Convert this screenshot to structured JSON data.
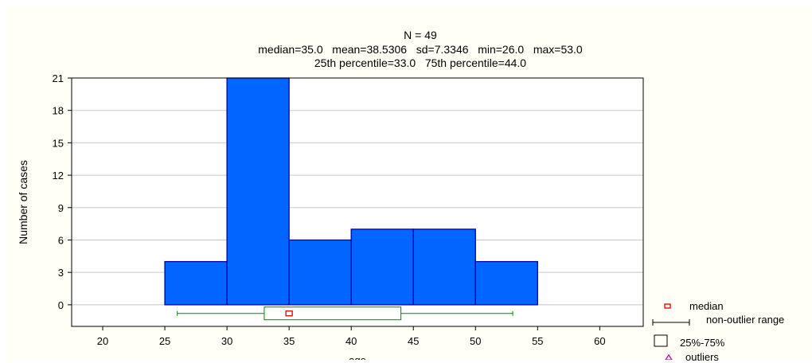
{
  "chart_data": {
    "type": "bar",
    "title": "N = 49",
    "subtitle_lines": [
      "median=35.0   mean=38.5306   sd=7.3346   min=26.0   max=53.0",
      "25th percentile=33.0   75th percentile=44.0"
    ],
    "xlabel": "age",
    "ylabel": "Number of cases",
    "xlim": [
      17.5,
      63.5
    ],
    "ylim": [
      -2,
      21
    ],
    "xticks": [
      20,
      25,
      30,
      35,
      40,
      45,
      50,
      55,
      60
    ],
    "yticks": [
      0,
      3,
      6,
      9,
      12,
      15,
      18,
      21
    ],
    "bins": [
      {
        "from": 25,
        "to": 30,
        "count": 4
      },
      {
        "from": 30,
        "to": 35,
        "count": 21
      },
      {
        "from": 35,
        "to": 40,
        "count": 6
      },
      {
        "from": 40,
        "to": 45,
        "count": 7
      },
      {
        "from": 45,
        "to": 50,
        "count": 7
      },
      {
        "from": 50,
        "to": 55,
        "count": 4
      }
    ],
    "boxplot": {
      "median": 35.0,
      "q1": 33.0,
      "q3": 44.0,
      "min": 26.0,
      "max": 53.0,
      "y_level": -0.8
    },
    "grid": true,
    "colors": {
      "bar_fill": "#0066ff",
      "bar_stroke": "#0000aa",
      "box": "#008800",
      "median": "#dd0000",
      "outlier": "#cc00cc",
      "plot_bg": "#ffffff",
      "page_bg": "#fffff5"
    }
  },
  "legend": {
    "median": "median",
    "range": "non-outlier range",
    "box": "25%-75%",
    "outliers": "outliers"
  }
}
